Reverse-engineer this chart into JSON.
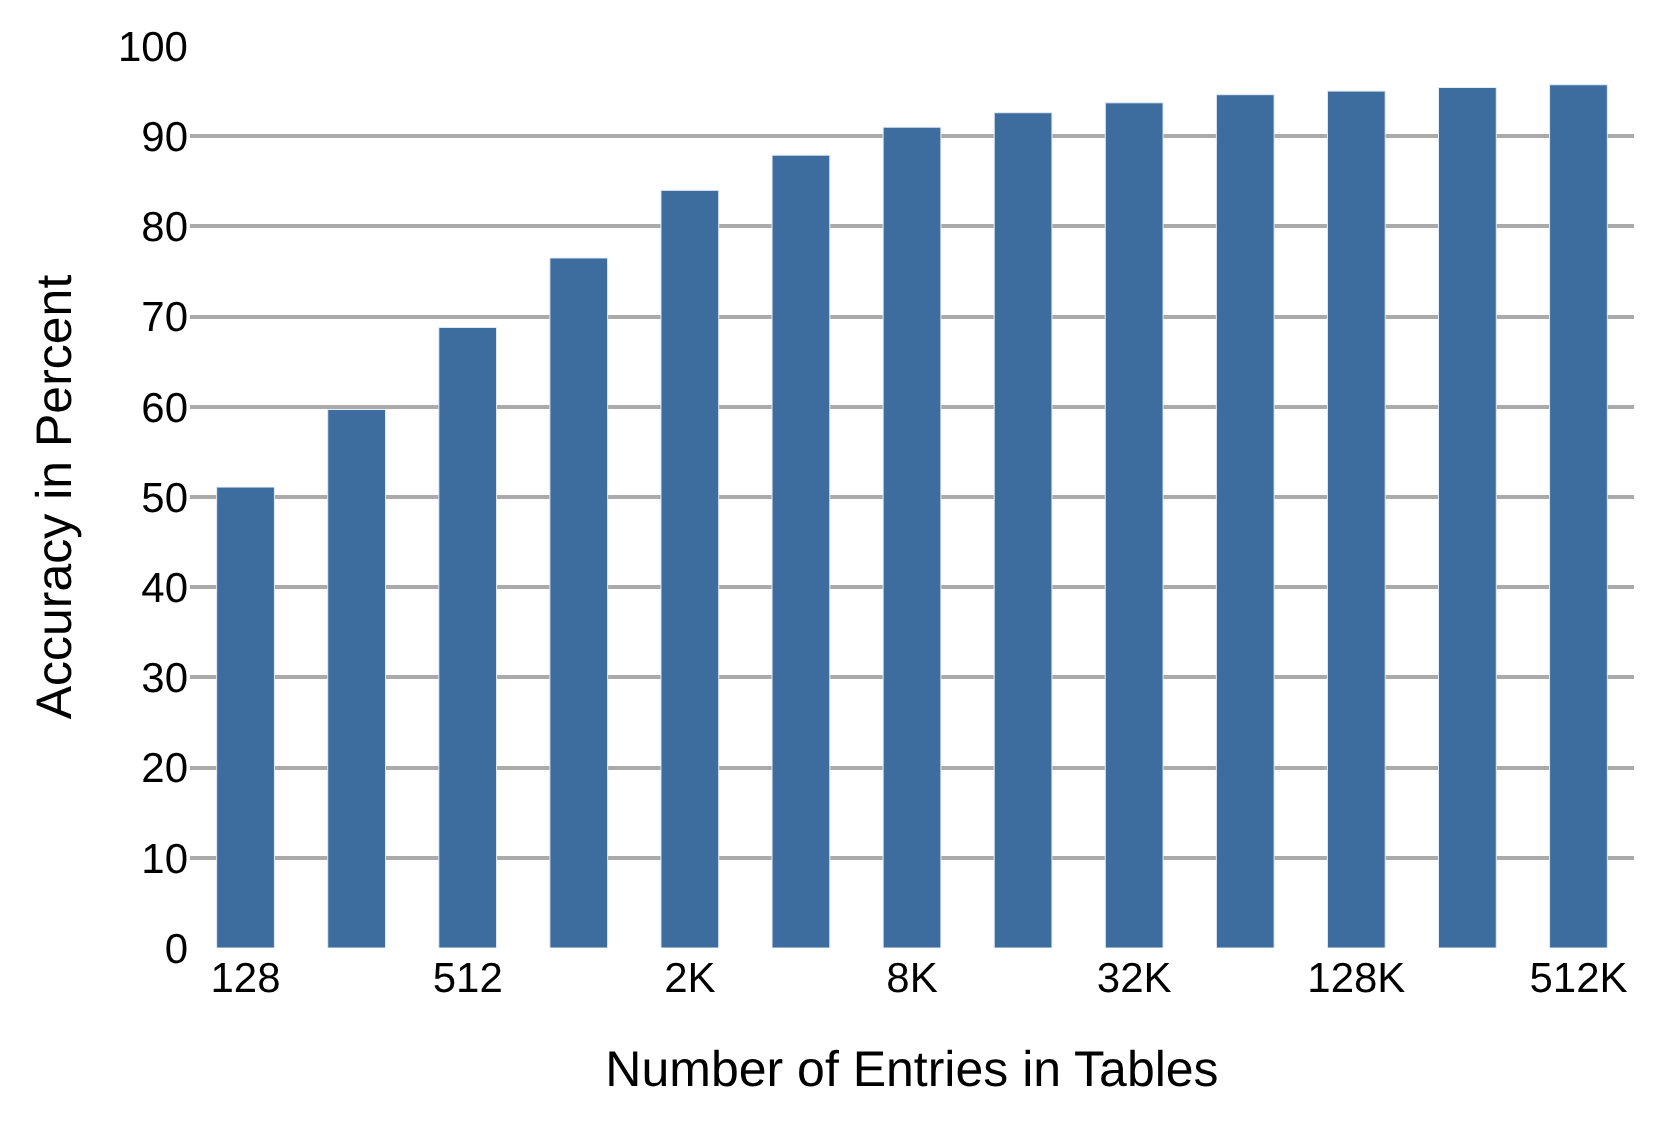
{
  "chart_data": {
    "type": "bar",
    "xlabel": "Number of Entries in Tables",
    "ylabel": "Accuracy in Percent",
    "categories": [
      "128",
      null,
      "512",
      null,
      "2K",
      null,
      "8K",
      null,
      "32K",
      null,
      "128K",
      null,
      "512K"
    ],
    "values": [
      51.1,
      59.7,
      68.8,
      76.5,
      84.0,
      87.9,
      91.0,
      92.6,
      93.7,
      94.6,
      95.0,
      95.4,
      95.7
    ],
    "color": "#3d6c9e",
    "ylim": [
      0,
      100
    ],
    "yticks": [
      0,
      10,
      20,
      30,
      40,
      50,
      60,
      70,
      80,
      90,
      100
    ],
    "grid": "y",
    "legend": false
  }
}
